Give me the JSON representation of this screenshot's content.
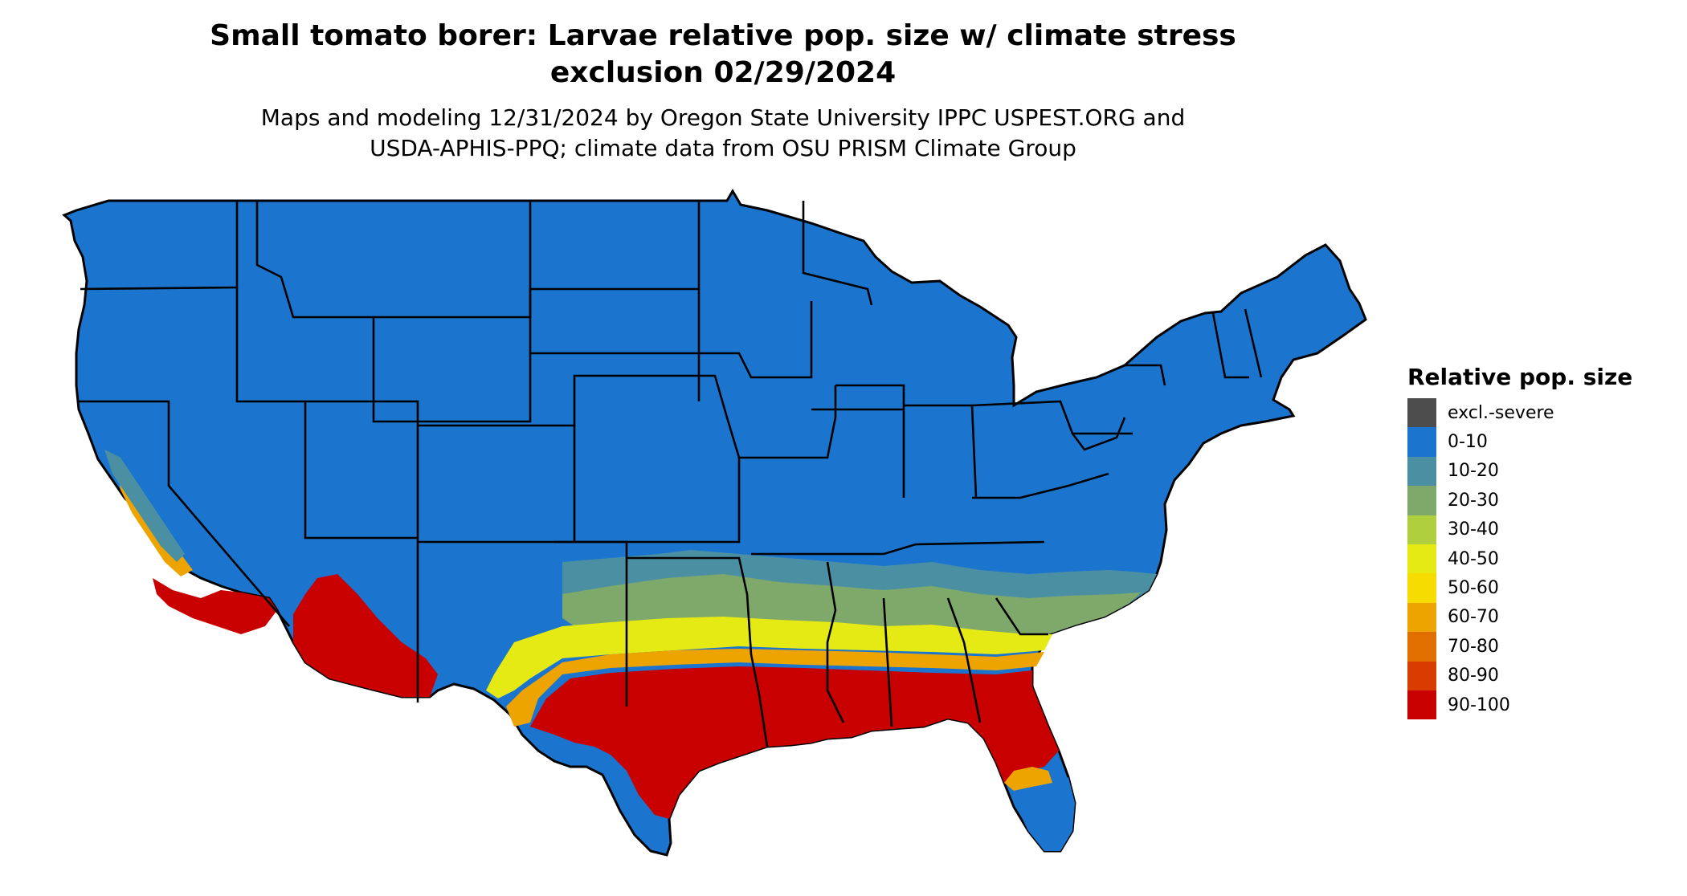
{
  "title_line1": "Small tomato borer: Larvae relative pop. size w/ climate stress",
  "title_line2": "exclusion 02/29/2024",
  "subtitle_line1": "Maps and modeling 12/31/2024 by Oregon State University IPPC USPEST.ORG and",
  "subtitle_line2": "USDA-APHIS-PPQ; climate data from OSU PRISM Climate Group",
  "legend": {
    "title": "Relative pop. size",
    "items": [
      {
        "label": "excl.-severe",
        "color": "#4d4d4d"
      },
      {
        "label": "0-10",
        "color": "#1b75cf"
      },
      {
        "label": "10-20",
        "color": "#4b90a2"
      },
      {
        "label": "20-30",
        "color": "#7fa96a"
      },
      {
        "label": "30-40",
        "color": "#b0cf3e"
      },
      {
        "label": "40-50",
        "color": "#e6ea14"
      },
      {
        "label": "50-60",
        "color": "#f6dc00"
      },
      {
        "label": "60-70",
        "color": "#eda400"
      },
      {
        "label": "70-80",
        "color": "#e06f00"
      },
      {
        "label": "80-90",
        "color": "#d93c00"
      },
      {
        "label": "90-100",
        "color": "#c80000"
      }
    ]
  }
}
